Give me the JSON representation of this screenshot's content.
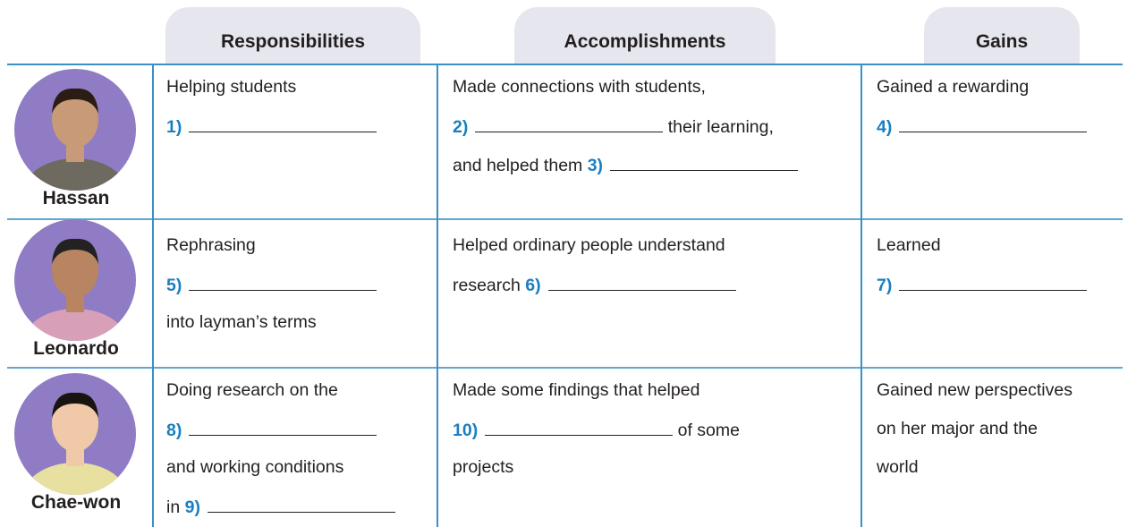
{
  "table": {
    "headers": [
      "Responsibilities",
      "Accomplishments",
      "Gains"
    ],
    "rows": [
      {
        "name": "Hassan",
        "cells": [
          [
            [
              {
                "text": "Helping students"
              }
            ],
            [
              {
                "blank": "1)"
              }
            ]
          ],
          [
            [
              {
                "text": "Made connections with students,"
              }
            ],
            [
              {
                "blank": "2)"
              },
              {
                "text": " their learning,"
              }
            ],
            [
              {
                "text": "and helped them "
              },
              {
                "blank": "3)"
              }
            ]
          ],
          [
            [
              {
                "text": "Gained a rewarding"
              }
            ],
            [
              {
                "blank": "4)"
              }
            ]
          ]
        ]
      },
      {
        "name": "Leonardo",
        "cells": [
          [
            [
              {
                "text": "Rephrasing"
              }
            ],
            [
              {
                "blank": "5)"
              }
            ],
            [
              {
                "text": "into layman’s terms"
              }
            ]
          ],
          [
            [
              {
                "text": "Helped ordinary people understand"
              }
            ],
            [
              {
                "text": "research "
              },
              {
                "blank": "6)"
              }
            ]
          ],
          [
            [
              {
                "text": "Learned"
              }
            ],
            [
              {
                "blank": "7)"
              }
            ]
          ]
        ]
      },
      {
        "name": "Chae-won",
        "cells": [
          [
            [
              {
                "text": "Doing research on the"
              }
            ],
            [
              {
                "blank": "8)"
              }
            ],
            [
              {
                "text": "and working conditions"
              }
            ],
            [
              {
                "text": "in "
              },
              {
                "blank": "9)"
              }
            ]
          ],
          [
            [
              {
                "text": "Made some findings that helped"
              }
            ],
            [
              {
                "blank": "10)"
              },
              {
                "text": " of some"
              }
            ],
            [
              {
                "text": "projects"
              }
            ]
          ],
          [
            [
              {
                "text": "Gained new perspectives"
              }
            ],
            [
              {
                "text": "on her major and the"
              }
            ],
            [
              {
                "text": "world"
              }
            ]
          ]
        ]
      }
    ]
  }
}
